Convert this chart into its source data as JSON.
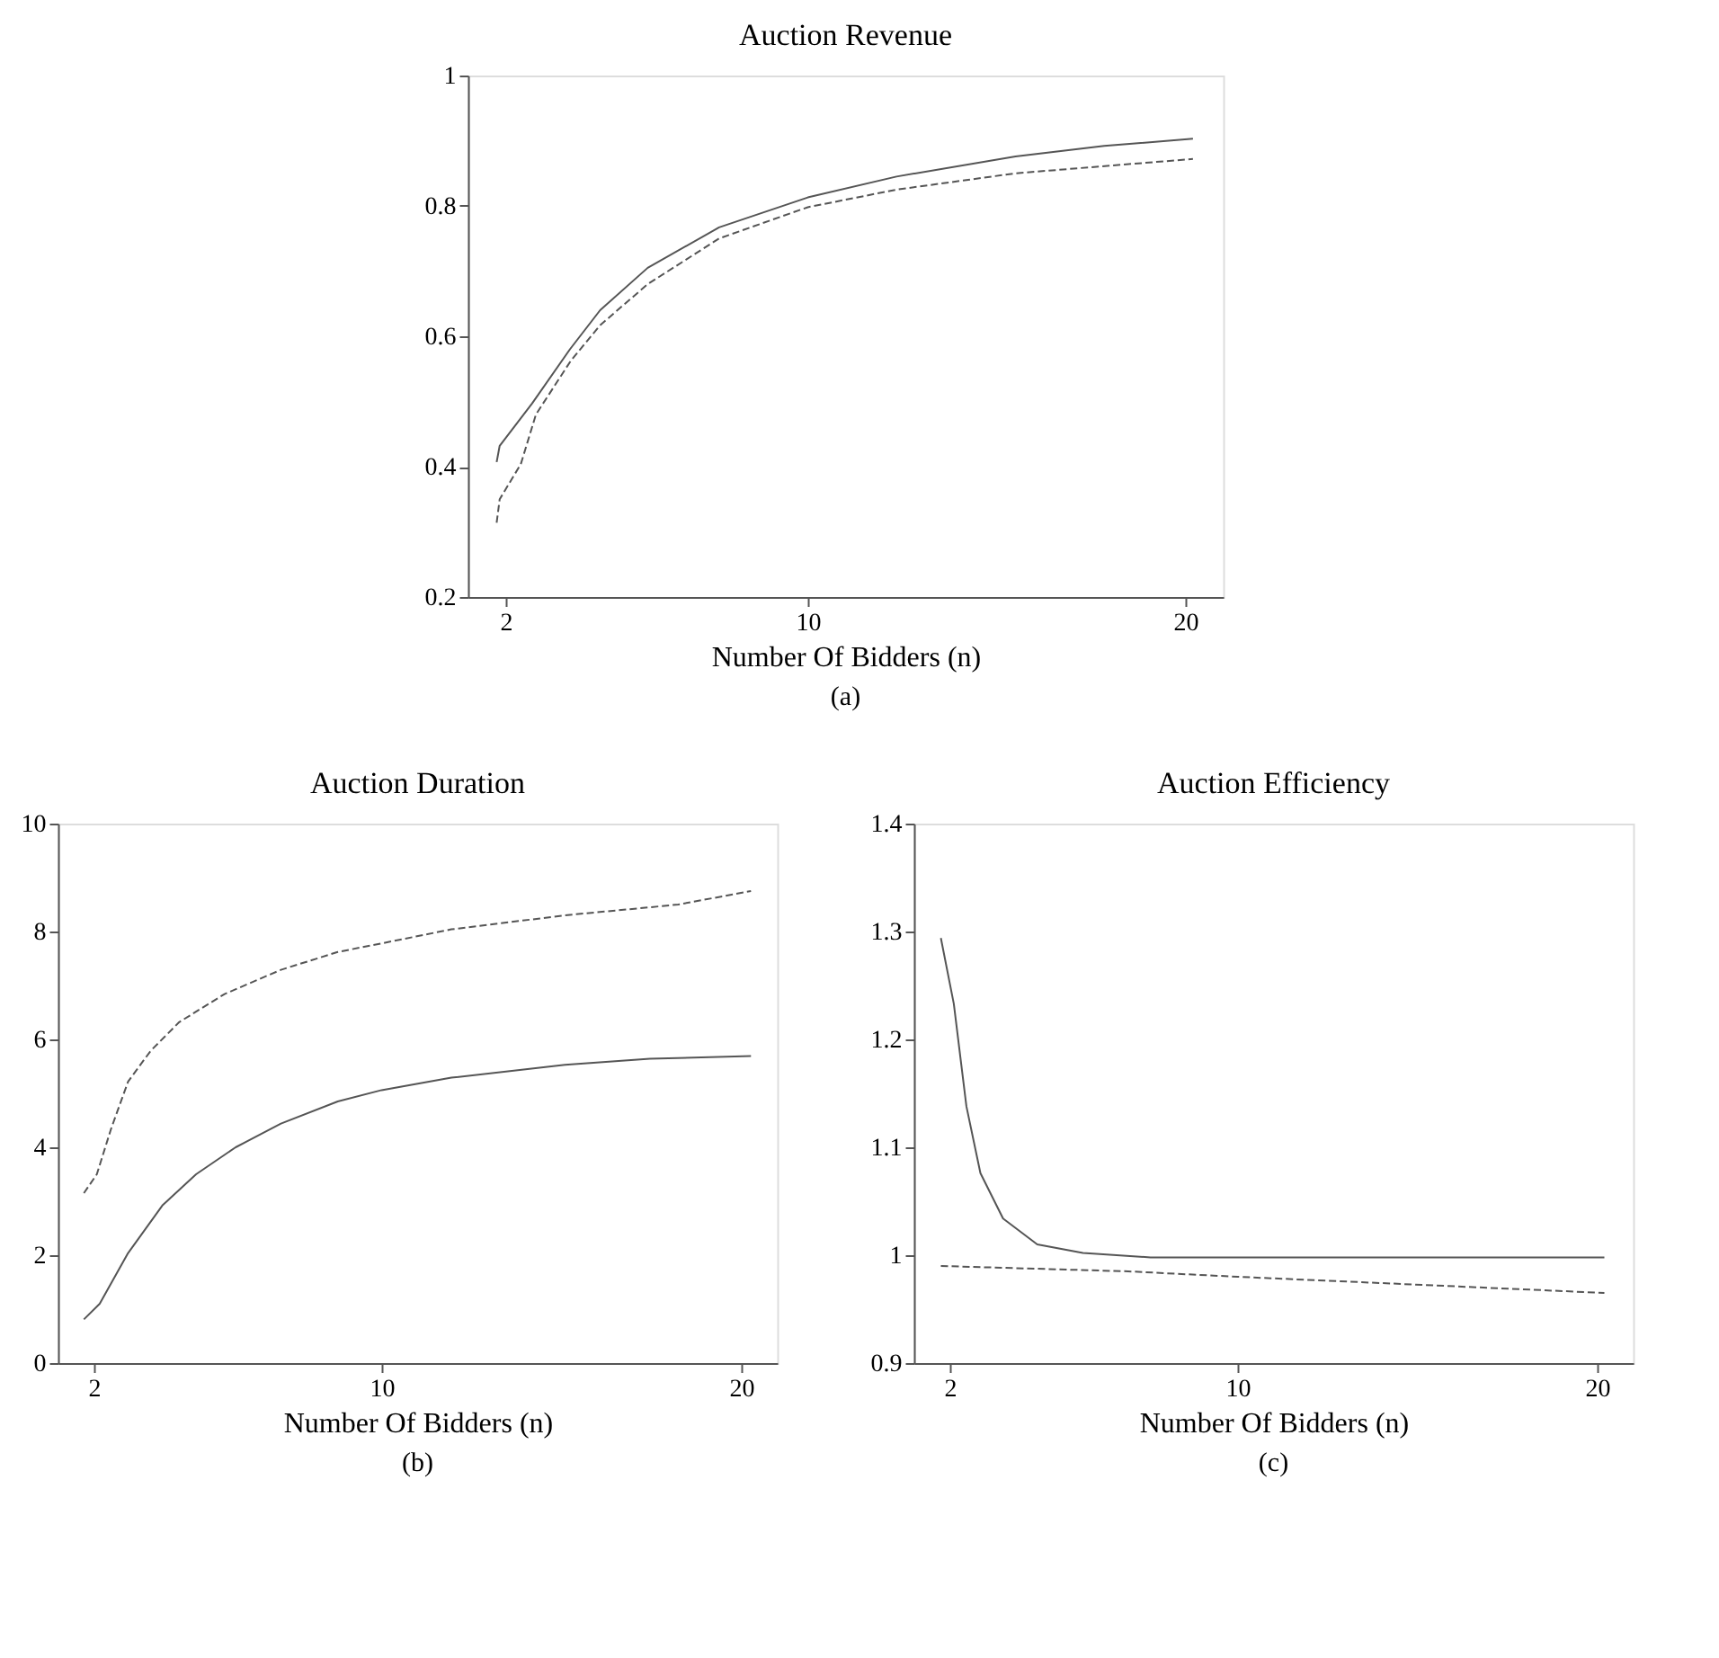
{
  "chart_data": [
    {
      "type": "line",
      "title": "Auction Revenue",
      "xlabel": "Number Of Bidders (n)",
      "annotations": [
        "(a)"
      ],
      "xlim": [
        1,
        21
      ],
      "xticks": [
        2,
        10,
        20
      ],
      "ylim": [
        0.2,
        1
      ],
      "yticks": [
        0.2,
        0.4,
        0.6,
        0.8,
        1
      ],
      "grid": false,
      "marker": "none",
      "series": [
        {
          "color": "#555555",
          "line_style": "solid",
          "x": [
            1.76,
            1.84,
            2.7,
            3.7,
            4.5,
            5.76,
            7.65,
            10,
            12.35,
            15.5,
            17.85,
            20.2
          ],
          "values": [
            0.407,
            0.432,
            0.497,
            0.58,
            0.64,
            0.705,
            0.767,
            0.813,
            0.845,
            0.876,
            0.892,
            0.903
          ]
        },
        {
          "color": "#555555",
          "line_style": "dashed",
          "x": [
            1.76,
            1.84,
            2.4,
            2.8,
            3.73,
            4.5,
            5.76,
            7.65,
            10,
            12.35,
            15.5,
            20.2
          ],
          "values": [
            0.314,
            0.35,
            0.404,
            0.48,
            0.563,
            0.617,
            0.68,
            0.75,
            0.798,
            0.825,
            0.85,
            0.872
          ]
        }
      ]
    },
    {
      "type": "line",
      "title": "Auction Duration",
      "xlabel": "Number Of Bidders (n)",
      "annotations": [
        "(b)"
      ],
      "xlim": [
        1,
        21
      ],
      "xticks": [
        2,
        10,
        20
      ],
      "ylim": [
        0,
        10
      ],
      "yticks": [
        0,
        2,
        4,
        6,
        8,
        10
      ],
      "grid": false,
      "marker": "none",
      "series": [
        {
          "color": "#555555",
          "line_style": "solid",
          "x": [
            1.72,
            2.16,
            2.95,
            3.9,
            4.84,
            5.94,
            7.2,
            8.78,
            10,
            11.94,
            15.1,
            17.46,
            20.27
          ],
          "values": [
            0.81,
            1.1,
            2.04,
            2.92,
            3.5,
            4.0,
            4.44,
            4.85,
            5.06,
            5.29,
            5.53,
            5.64,
            5.69
          ]
        },
        {
          "color": "#555555",
          "line_style": "dashed",
          "x": [
            1.72,
            2.08,
            2.47,
            2.95,
            3.58,
            4.37,
            5.63,
            7.2,
            8.78,
            10,
            11.94,
            15.1,
            18.25,
            20.27
          ],
          "values": [
            3.15,
            3.5,
            4.33,
            5.22,
            5.79,
            6.32,
            6.84,
            7.29,
            7.62,
            7.78,
            8.04,
            8.3,
            8.5,
            8.75
          ]
        }
      ]
    },
    {
      "type": "line",
      "title": "Auction Efficiency",
      "xlabel": "Number Of Bidders (n)",
      "annotations": [
        "(c)"
      ],
      "xlim": [
        1,
        21
      ],
      "xticks": [
        2,
        10,
        20
      ],
      "ylim": [
        0.9,
        1.4
      ],
      "yticks": [
        0.9,
        1,
        1.1,
        1.2,
        1.3,
        1.4
      ],
      "grid": false,
      "marker": "none",
      "series": [
        {
          "color": "#555555",
          "line_style": "solid",
          "x": [
            1.75,
            2.11,
            2.46,
            2.85,
            3.48,
            4.43,
            5.7,
            7.58,
            10,
            20.2
          ],
          "values": [
            1.294,
            1.233,
            1.138,
            1.076,
            1.034,
            1.01,
            1.002,
            0.998,
            0.998,
            0.998
          ]
        },
        {
          "color": "#555555",
          "line_style": "dashed",
          "x": [
            1.75,
            6.96,
            10,
            15.47,
            20.2
          ],
          "values": [
            0.99,
            0.985,
            0.98,
            0.972,
            0.965
          ]
        }
      ]
    }
  ]
}
